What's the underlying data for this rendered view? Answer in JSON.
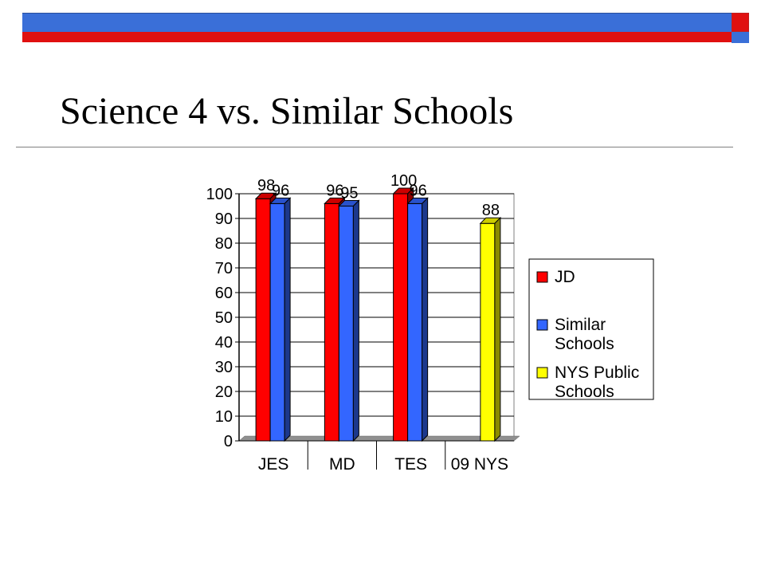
{
  "slide": {
    "title": "Science 4 vs. Similar Schools",
    "colors": {
      "accent_blue": "#3a6fd8",
      "accent_red": "#e01010"
    }
  },
  "chart_data": {
    "type": "bar",
    "title": "",
    "xlabel": "",
    "ylabel": "",
    "categories": [
      "JES",
      "MD",
      "TES",
      "09 NYS"
    ],
    "ylim": [
      0,
      100
    ],
    "yticks": [
      0,
      10,
      20,
      30,
      40,
      50,
      60,
      70,
      80,
      90,
      100
    ],
    "grid": true,
    "legend_position": "right",
    "series": [
      {
        "name": "JD",
        "color": "#ff0000",
        "values": [
          98,
          96,
          100,
          null
        ]
      },
      {
        "name": "Similar Schools",
        "color": "#3366ff",
        "values": [
          96,
          95,
          96,
          null
        ]
      },
      {
        "name": "NYS Public Schools",
        "color": "#ffff00",
        "values": [
          null,
          null,
          null,
          88
        ]
      }
    ],
    "legend": [
      {
        "lines": [
          "JD"
        ],
        "color": "#ff0000"
      },
      {
        "lines": [
          "Similar",
          "Schools"
        ],
        "color": "#3366ff"
      },
      {
        "lines": [
          "NYS Public",
          "Schools"
        ],
        "color": "#ffff00"
      }
    ]
  }
}
